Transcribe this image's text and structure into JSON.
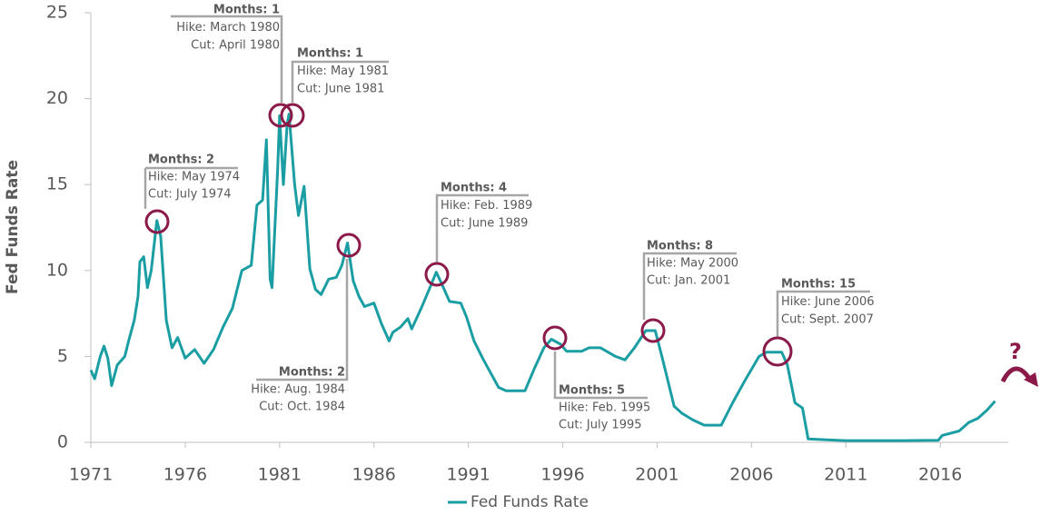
{
  "chart_data": {
    "type": "line",
    "y_label": "Fed Funds Rate",
    "xlim": [
      1971,
      2019.6
    ],
    "xticks": [
      1971,
      1976,
      1981,
      1986,
      1991,
      1996,
      2001,
      2006,
      2011,
      2016
    ],
    "ylim": [
      0,
      25
    ],
    "yticks": [
      0,
      5,
      10,
      15,
      20,
      25
    ],
    "legend": "bottom",
    "x": [
      1971.0,
      1971.2,
      1971.5,
      1971.7,
      1971.9,
      1972.1,
      1972.4,
      1972.8,
      1973.0,
      1973.3,
      1973.5,
      1973.6,
      1973.8,
      1974.0,
      1974.2,
      1974.5,
      1974.7,
      1975.0,
      1975.3,
      1975.6,
      1976.0,
      1976.5,
      1977.0,
      1977.5,
      1978.0,
      1978.5,
      1979.0,
      1979.5,
      1979.8,
      1980.1,
      1980.3,
      1980.5,
      1980.6,
      1980.9,
      1981.0,
      1981.2,
      1981.4,
      1981.5,
      1981.8,
      1982.0,
      1982.3,
      1982.6,
      1982.9,
      1983.2,
      1983.6,
      1984.0,
      1984.3,
      1984.6,
      1984.9,
      1985.2,
      1985.5,
      1986.0,
      1986.4,
      1986.8,
      1987.0,
      1987.4,
      1987.8,
      1988.0,
      1988.5,
      1989.0,
      1989.3,
      1989.6,
      1990.0,
      1990.6,
      1990.9,
      1991.3,
      1991.8,
      1992.2,
      1992.6,
      1993.0,
      1993.5,
      1994.0,
      1994.5,
      1995.0,
      1995.4,
      1995.9,
      1996.2,
      1997.0,
      1997.4,
      1998.0,
      1998.8,
      1999.3,
      1999.8,
      2000.4,
      2000.9,
      2001.3,
      2001.9,
      2002.3,
      2002.9,
      2003.5,
      2004.4,
      2005.0,
      2005.6,
      2006.4,
      2006.8,
      2007.6,
      2007.9,
      2008.3,
      2008.7,
      2009.0,
      2010.0,
      2011.0,
      2014.0,
      2015.9,
      2016.1,
      2017.0,
      2017.5,
      2018.0,
      2018.5,
      2018.9
    ],
    "series": [
      {
        "name": "Fed Funds Rate",
        "color": "#1b9ea3",
        "values": [
          4.2,
          3.7,
          5.0,
          5.6,
          4.9,
          3.3,
          4.5,
          5.0,
          5.9,
          7.1,
          8.5,
          10.5,
          10.8,
          9.0,
          10.0,
          12.9,
          12.0,
          7.1,
          5.5,
          6.1,
          4.9,
          5.4,
          4.6,
          5.4,
          6.7,
          7.8,
          10.0,
          10.3,
          13.8,
          14.1,
          17.6,
          9.5,
          9.0,
          15.9,
          19.0,
          15.0,
          18.5,
          19.1,
          15.0,
          13.2,
          14.9,
          10.1,
          8.9,
          8.6,
          9.5,
          9.6,
          10.3,
          11.6,
          9.4,
          8.5,
          7.9,
          8.1,
          6.9,
          5.9,
          6.4,
          6.7,
          7.2,
          6.6,
          7.8,
          9.1,
          9.9,
          9.2,
          8.2,
          8.1,
          7.3,
          5.9,
          4.8,
          4.0,
          3.2,
          3.0,
          3.0,
          3.0,
          4.3,
          5.5,
          6.0,
          5.7,
          5.3,
          5.3,
          5.5,
          5.5,
          5.0,
          4.8,
          5.5,
          6.5,
          6.5,
          4.8,
          2.1,
          1.7,
          1.3,
          1.0,
          1.0,
          2.3,
          3.5,
          5.0,
          5.25,
          5.25,
          4.5,
          2.3,
          2.0,
          0.2,
          0.15,
          0.1,
          0.1,
          0.12,
          0.4,
          0.66,
          1.15,
          1.4,
          1.9,
          2.4
        ]
      }
    ],
    "annotations": [
      {
        "months": "Months: 2",
        "hike": "Hike: May 1974",
        "cut": "Cut: July 1974"
      },
      {
        "months": "Months: 1",
        "hike": "Hike: March 1980",
        "cut": "Cut: April 1980"
      },
      {
        "months": "Months: 1",
        "hike": "Hike: May 1981",
        "cut": "Cut: June 1981"
      },
      {
        "months": "Months: 2",
        "hike": "Hike: Aug. 1984",
        "cut": "Cut: Oct. 1984"
      },
      {
        "months": "Months: 4",
        "hike": "Hike: Feb. 1989",
        "cut": "Cut: June 1989"
      },
      {
        "months": "Months: 5",
        "hike": "Hike: Feb. 1995",
        "cut": "Cut: July 1995"
      },
      {
        "months": "Months: 8",
        "hike": "Hike: May 2000",
        "cut": "Cut: Jan. 2001"
      },
      {
        "months": "Months: 15",
        "hike": "Hike: June 2006",
        "cut": "Cut: Sept. 2007"
      }
    ],
    "question": "?"
  }
}
